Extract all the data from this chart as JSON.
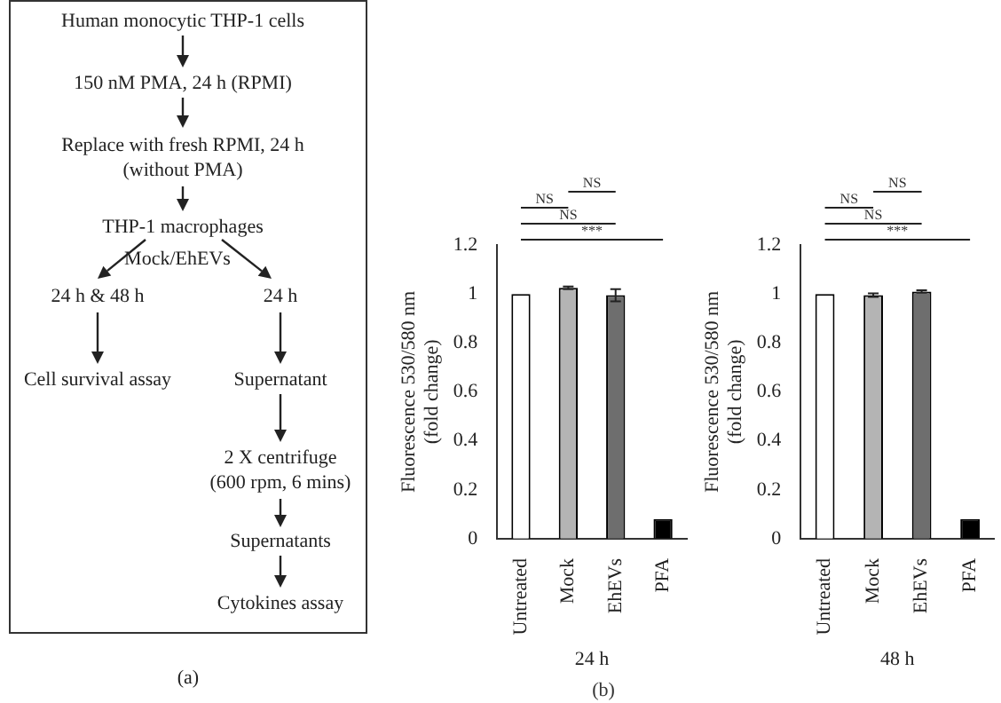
{
  "chart_data": [
    {
      "type": "other",
      "annotations": [
        "Human monocytic THP-1 cells",
        "150 nM PMA, 24 h (RPMI)",
        "Replace with fresh RPMI, 24 h\n(without PMA)",
        "THP-1 macrophages",
        "Mock/EhEVs",
        "24 h & 48 h",
        "24 h",
        "Cell survival assay",
        "Supernatant",
        "2 X centrifuge\n(600 rpm, 6 mins)",
        "Supernatants",
        "Cytokines assay",
        "(a)"
      ]
    },
    {
      "type": "bar",
      "xlabel": "24 h",
      "ylabel": "Fluorescence 530/580 nm\n(fold change)",
      "categories": [
        "Untreated",
        "Mock",
        "EhEVs",
        "PFA"
      ],
      "values": [
        1.0,
        1.025,
        0.995,
        0.08
      ],
      "errors": [
        null,
        0.005,
        0.025,
        null
      ],
      "colors": [
        "#ffffff",
        "#b4b4b4",
        "#6e6e6e",
        "#000000"
      ],
      "ylim": [
        0,
        1.2
      ],
      "yticks": [
        0,
        0.2,
        0.4,
        0.6,
        0.8,
        1,
        1.2
      ],
      "annotations": [
        "NS",
        "NS",
        "NS",
        "***",
        "(b)"
      ]
    },
    {
      "type": "bar",
      "xlabel": "48 h",
      "ylabel": "Fluorescence 530/580 nm\n(fold change)",
      "categories": [
        "Untreated",
        "Mock",
        "EhEVs",
        "PFA"
      ],
      "values": [
        1.0,
        0.995,
        1.01,
        0.08
      ],
      "errors": [
        null,
        0.007,
        0.005,
        null
      ],
      "colors": [
        "#ffffff",
        "#b4b4b4",
        "#6e6e6e",
        "#000000"
      ],
      "ylim": [
        0,
        1.2
      ],
      "yticks": [
        0,
        0.2,
        0.4,
        0.6,
        0.8,
        1,
        1.2
      ],
      "annotations": [
        "NS",
        "NS",
        "NS",
        "***"
      ]
    }
  ]
}
